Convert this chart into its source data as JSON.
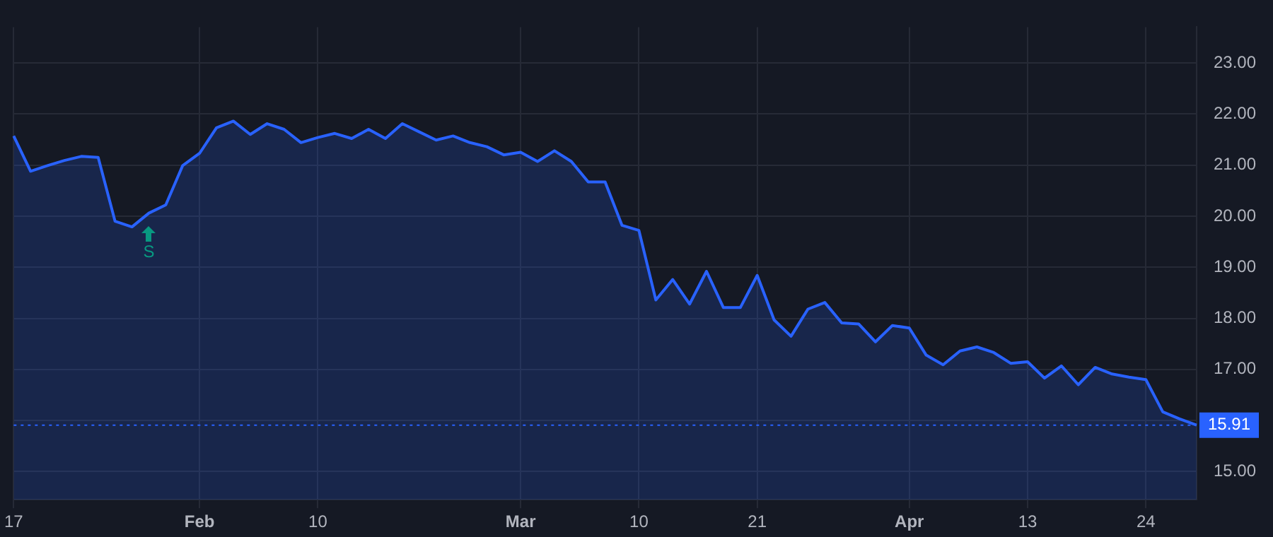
{
  "chart_data": {
    "type": "area",
    "categories": [
      "17",
      null,
      null,
      null,
      null,
      null,
      null,
      null,
      null,
      null,
      null,
      "Feb",
      null,
      null,
      null,
      null,
      null,
      null,
      "10",
      null,
      null,
      null,
      null,
      null,
      null,
      null,
      null,
      null,
      null,
      null,
      "Mar",
      null,
      null,
      null,
      null,
      null,
      null,
      "10",
      null,
      null,
      null,
      null,
      null,
      null,
      "21",
      null,
      null,
      null,
      null,
      null,
      null,
      null,
      null,
      "Apr",
      null,
      null,
      null,
      null,
      null,
      null,
      "13",
      null,
      null,
      null,
      null,
      null,
      null,
      "24",
      null,
      null,
      null
    ],
    "series": [
      {
        "color": "#2962ff",
        "values": [
          21.57,
          20.88,
          20.99,
          21.09,
          21.17,
          21.15,
          19.9,
          19.79,
          20.06,
          20.22,
          20.99,
          21.23,
          21.73,
          21.86,
          21.6,
          21.81,
          21.7,
          21.44,
          21.54,
          21.62,
          21.52,
          21.7,
          21.52,
          21.81,
          21.65,
          21.49,
          21.57,
          21.44,
          21.36,
          21.2,
          21.25,
          21.07,
          21.28,
          21.07,
          20.67,
          20.67,
          19.82,
          19.72,
          18.36,
          18.76,
          18.28,
          18.92,
          18.21,
          18.21,
          18.84,
          17.97,
          17.65,
          18.18,
          18.31,
          17.91,
          17.89,
          17.54,
          17.86,
          17.81,
          17.28,
          17.09,
          17.36,
          17.44,
          17.33,
          17.12,
          17.15,
          16.83,
          17.07,
          16.7,
          17.04,
          16.91,
          16.85,
          16.8,
          16.17,
          16.03,
          15.91
        ]
      }
    ],
    "ylim": [
      14.45,
      23.7
    ],
    "yticks": [
      {
        "value": 15,
        "label": "15.00"
      },
      {
        "value": 16,
        "label": null
      },
      {
        "value": 17,
        "label": "17.00"
      },
      {
        "value": 18,
        "label": "18.00"
      },
      {
        "value": 19,
        "label": "19.00"
      },
      {
        "value": 20,
        "label": "20.00"
      },
      {
        "value": 21,
        "label": "21.00"
      },
      {
        "value": 22,
        "label": "22.00"
      },
      {
        "value": 23,
        "label": "23.00"
      }
    ],
    "grid": true,
    "legend": false,
    "ref_lines": [
      {
        "axis": "y",
        "value": 15.91,
        "label": "15.91",
        "color": "#2962ff",
        "line_style": "dotted"
      }
    ],
    "annotations": [
      "S"
    ]
  }
}
